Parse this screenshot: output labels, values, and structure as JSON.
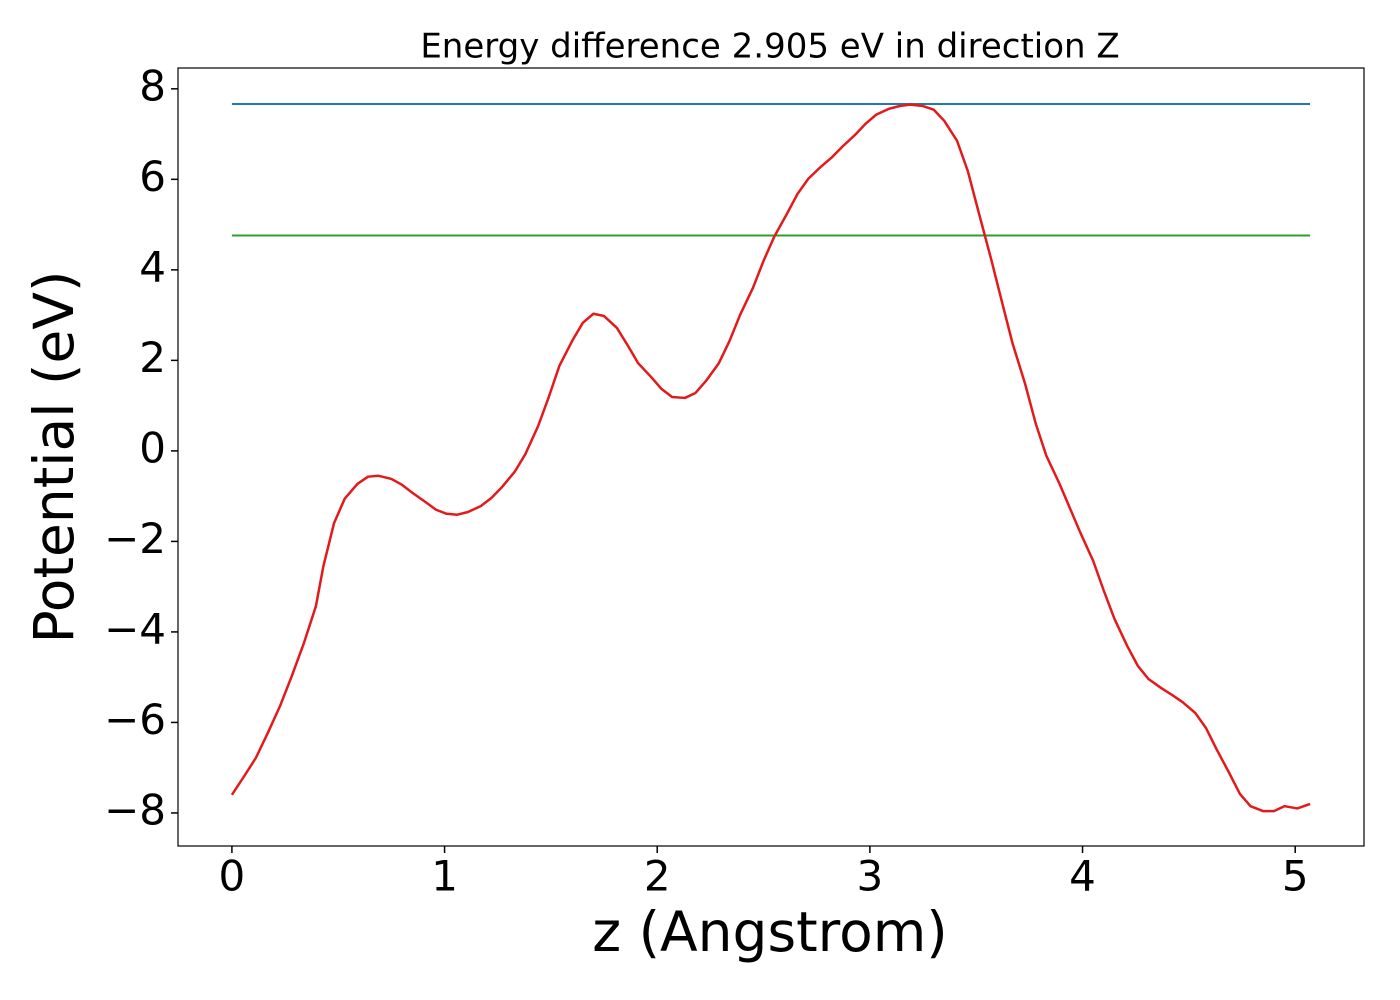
{
  "chart_data": {
    "type": "line",
    "title": "Energy difference 2.905 eV in direction Z",
    "xlabel": "z (Angstrom)",
    "ylabel": "Potential (eV)",
    "x": [
      0,
      0.056,
      0.113,
      0.169,
      0.226,
      0.282,
      0.339,
      0.395,
      0.43,
      0.48,
      0.53,
      0.59,
      0.64,
      0.69,
      0.75,
      0.8,
      0.85,
      0.91,
      0.96,
      1.01,
      1.06,
      1.11,
      1.17,
      1.22,
      1.27,
      1.33,
      1.38,
      1.44,
      1.49,
      1.54,
      1.6,
      1.65,
      1.7,
      1.75,
      1.81,
      1.86,
      1.91,
      1.97,
      2.02,
      2.07,
      2.13,
      2.18,
      2.23,
      2.29,
      2.34,
      2.39,
      2.45,
      2.5,
      2.55,
      2.61,
      2.66,
      2.71,
      2.77,
      2.82,
      2.87,
      2.93,
      2.98,
      3.03,
      3.09,
      3.14,
      3.19,
      3.25,
      3.3,
      3.35,
      3.41,
      3.46,
      3.51,
      3.57,
      3.62,
      3.67,
      3.73,
      3.78,
      3.83,
      3.89,
      3.94,
      3.99,
      4.05,
      4.1,
      4.15,
      4.21,
      4.26,
      4.31,
      4.37,
      4.42,
      4.47,
      4.53,
      4.58,
      4.63,
      4.69,
      4.74,
      4.79,
      4.85,
      4.9,
      4.95,
      5.01,
      5.07
    ],
    "series": [
      {
        "color": "#e31a1c",
        "values": [
          -7.6,
          -7.2,
          -6.78,
          -6.23,
          -5.64,
          -4.97,
          -4.24,
          -3.43,
          -2.55,
          -1.6,
          -1.06,
          -0.73,
          -0.57,
          -0.55,
          -0.62,
          -0.75,
          -0.93,
          -1.13,
          -1.3,
          -1.39,
          -1.41,
          -1.35,
          -1.22,
          -1.04,
          -0.8,
          -0.46,
          -0.07,
          0.55,
          1.19,
          1.88,
          2.43,
          2.83,
          3.03,
          2.98,
          2.72,
          2.34,
          1.94,
          1.64,
          1.37,
          1.19,
          1.17,
          1.28,
          1.55,
          1.94,
          2.43,
          3.01,
          3.6,
          4.2,
          4.73,
          5.24,
          5.68,
          6.01,
          6.28,
          6.48,
          6.72,
          6.98,
          7.23,
          7.43,
          7.56,
          7.62,
          7.65,
          7.62,
          7.54,
          7.29,
          6.85,
          6.19,
          5.3,
          4.24,
          3.31,
          2.39,
          1.48,
          0.6,
          -0.11,
          -0.71,
          -1.26,
          -1.81,
          -2.43,
          -3.09,
          -3.71,
          -4.31,
          -4.75,
          -5.04,
          -5.24,
          -5.39,
          -5.55,
          -5.79,
          -6.12,
          -6.59,
          -7.12,
          -7.58,
          -7.85,
          -7.96,
          -7.96,
          -7.85,
          -7.9,
          -7.8
        ]
      }
    ],
    "hlines": [
      {
        "value": 7.665,
        "color": "#1f77b4"
      },
      {
        "value": 4.76,
        "color": "#2ca02c"
      }
    ],
    "xlim": [
      -0.2535,
      5.3235
    ],
    "ylim": [
      -8.73,
      8.46
    ],
    "xticks": [
      0,
      1,
      2,
      3,
      4,
      5
    ],
    "yticks": [
      {
        "value": -8,
        "label": "−8"
      },
      {
        "value": -6,
        "label": "−6"
      },
      {
        "value": -4,
        "label": "−4"
      },
      {
        "value": -2,
        "label": "−2"
      },
      0,
      2,
      4,
      6,
      8
    ]
  }
}
